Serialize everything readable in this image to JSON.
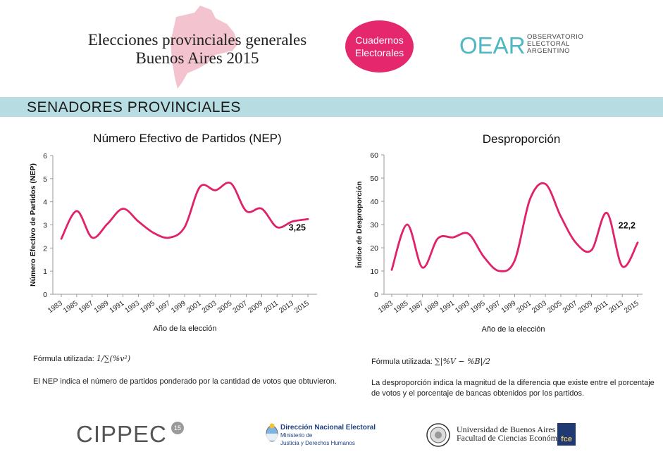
{
  "header": {
    "title_line1": "Elecciones provinciales generales",
    "title_line2": "Buenos Aires 2015",
    "badge_line1": "Cuadernos",
    "badge_line2": "Electorales",
    "oear_mark": "OEAR",
    "oear_line1": "OBSERVATORIO",
    "oear_line2": "ELECTORAL",
    "oear_line3": "ARGENTINO"
  },
  "section": {
    "title": "SENADORES PROVINCIALES"
  },
  "chart_data": [
    {
      "type": "line",
      "title": "Número Efectivo de Partidos (NEP)",
      "xlabel": "Año de la elección",
      "ylabel": "Número Efectivo de Partidos (NEP)",
      "ylim": [
        0,
        6
      ],
      "yticks": [
        "0",
        "1",
        "2",
        "3",
        "4",
        "5",
        "6"
      ],
      "x": [
        "1983",
        "1985",
        "1987",
        "1989",
        "1991",
        "1993",
        "1995",
        "1997",
        "1999",
        "2001",
        "2003",
        "2005",
        "2007",
        "2009",
        "2011",
        "2013",
        "2015"
      ],
      "values": [
        2.4,
        3.6,
        2.45,
        3.05,
        3.7,
        3.15,
        2.65,
        2.45,
        2.9,
        4.65,
        4.5,
        4.8,
        3.6,
        3.7,
        2.9,
        3.15,
        3.25
      ],
      "last_label": "3,25",
      "color": "#e0226a",
      "grid": false
    },
    {
      "type": "line",
      "title": "Desproporción",
      "xlabel": "Año de la elección",
      "ylabel": "Índice de Desproporción",
      "ylim": [
        0,
        60
      ],
      "yticks": [
        "0",
        "10",
        "20",
        "30",
        "40",
        "50",
        "60"
      ],
      "x": [
        "1983",
        "1985",
        "1987",
        "1989",
        "1991",
        "1993",
        "1995",
        "1997",
        "1999",
        "2001",
        "2003",
        "2005",
        "2007",
        "2009",
        "2011",
        "2013",
        "2015"
      ],
      "values": [
        10.5,
        30,
        11.5,
        24,
        24.5,
        26,
        16,
        10,
        14.5,
        41,
        47.5,
        33.5,
        22,
        19,
        35,
        12,
        22.2
      ],
      "last_label": "22,2",
      "color": "#e0226a",
      "grid": false
    }
  ],
  "notes": {
    "nep_formula_label": "Fórmula utilizada:",
    "nep_formula": "1/∑(%v²)",
    "nep_text": "El NEP indica el número de partidos ponderado por la cantidad de votos que obtuvieron.",
    "desp_formula_label": "Fórmula utilizada:",
    "desp_formula": "∑|%V − %B|/2",
    "desp_text": "La desproporción indica la magnitud de la diferencia que existe entre el porcentaje de votos y el porcentaje de bancas obtenidos por los partidos."
  },
  "footer": {
    "cippec": "CIPPEC",
    "cippec_badge": "15",
    "dne_title": "Dirección Nacional Electoral",
    "dne_sub1": "Ministerio de",
    "dne_sub2": "Justicia y Derechos Humanos",
    "uba_line1": "Universidad de Buenos Aires",
    "uba_line2": "Facultad de Ciencias Económicas",
    "fce": "fce"
  },
  "colors": {
    "accent": "#e5276e",
    "band": "#b7dde3",
    "line": "#e0226a",
    "oear": "#4fb7c2"
  }
}
